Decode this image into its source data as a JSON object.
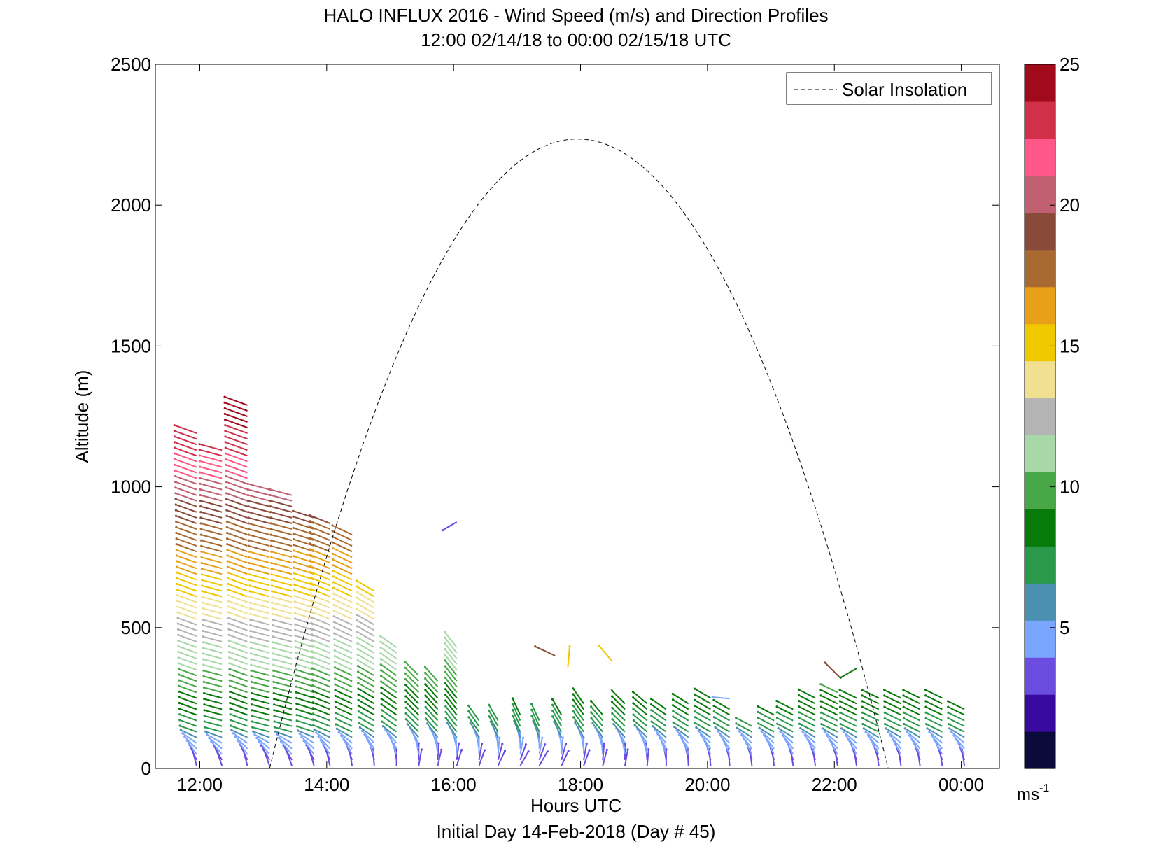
{
  "figure": {
    "title_line1": "HALO INFLUX 2016 - Wind Speed (m/s) and Direction Profiles",
    "title_line2": "12:00 02/14/18 to 00:00 02/15/18  UTC",
    "xlabel": "Hours UTC",
    "subtitle": "Initial Day 14-Feb-2018 (Day # 45)",
    "ylabel": "Altitude (m)",
    "legend_label": "Solar Insolation",
    "colorbar_unit_base": "ms",
    "colorbar_unit_exp": "-1"
  },
  "chart_data": {
    "type": "scatter",
    "description": "wind barb profiles (altitude vs. time), colored by wind speed",
    "x_axis": {
      "label": "Hours UTC",
      "range_hours": [
        11.3,
        24.6
      ],
      "ticks": [
        {
          "value": 12,
          "label": "12:00"
        },
        {
          "value": 14,
          "label": "14:00"
        },
        {
          "value": 16,
          "label": "16:00"
        },
        {
          "value": 18,
          "label": "18:00"
        },
        {
          "value": 20,
          "label": "20:00"
        },
        {
          "value": 22,
          "label": "22:00"
        },
        {
          "value": 24,
          "label": "00:00"
        }
      ]
    },
    "y_axis": {
      "label": "Altitude (m)",
      "range": [
        0,
        2500
      ],
      "ticks": [
        0,
        500,
        1000,
        1500,
        2000,
        2500
      ]
    },
    "colorbar": {
      "range": [
        0,
        25
      ],
      "ticks": [
        5,
        10,
        15,
        20,
        25
      ],
      "colors": [
        "#0a0a3c",
        "#3a0aa0",
        "#6a4ce0",
        "#7aa6ff",
        "#4a90b0",
        "#2a9a4a",
        "#087a0a",
        "#48a848",
        "#a8d8a8",
        "#b4b4b4",
        "#f0e090",
        "#f0c800",
        "#e8a018",
        "#a86a30",
        "#8a4a3a",
        "#c06070",
        "#ff5888",
        "#d03048",
        "#a00a1a"
      ]
    },
    "solar_insolation": {
      "style": "dashed",
      "start_hour": 13.1,
      "peak_hour": 17.95,
      "peak_altitude": 2235,
      "end_hour": 22.85
    },
    "profiles": [
      {
        "time": 11.95,
        "max_alt": 1200,
        "dir": 250
      },
      {
        "time": 12.35,
        "max_alt": 1140,
        "dir": 255
      },
      {
        "time": 12.75,
        "max_alt": 1290,
        "dir": 250
      },
      {
        "time": 13.1,
        "max_alt": 1000,
        "dir": 255
      },
      {
        "time": 13.45,
        "max_alt": 980,
        "dir": 255
      },
      {
        "time": 13.8,
        "max_alt": 900,
        "dir": 252
      },
      {
        "time": 14.05,
        "max_alt": 880,
        "dir": 248
      },
      {
        "time": 14.4,
        "max_alt": 840,
        "dir": 245
      },
      {
        "time": 14.75,
        "max_alt": 630,
        "dir": 240
      },
      {
        "time": 15.1,
        "max_alt": 430,
        "dir": 235
      },
      {
        "time": 15.45,
        "max_alt": 340,
        "dir": 225
      },
      {
        "time": 15.75,
        "max_alt": 320,
        "dir": 222
      },
      {
        "time": 16.05,
        "max_alt": 430,
        "dir": 218
      },
      {
        "time": 16.4,
        "max_alt": 180,
        "dir": 215
      },
      {
        "time": 16.7,
        "max_alt": 180,
        "dir": 210
      },
      {
        "time": 17.05,
        "max_alt": 190,
        "dir": 205
      },
      {
        "time": 17.35,
        "max_alt": 180,
        "dir": 205
      },
      {
        "time": 17.7,
        "max_alt": 200,
        "dir": 210
      },
      {
        "time": 18.05,
        "max_alt": 240,
        "dir": 215
      },
      {
        "time": 18.35,
        "max_alt": 190,
        "dir": 220
      },
      {
        "time": 18.7,
        "max_alt": 230,
        "dir": 225
      },
      {
        "time": 19.05,
        "max_alt": 240,
        "dir": 230
      },
      {
        "time": 19.35,
        "max_alt": 210,
        "dir": 235
      },
      {
        "time": 19.7,
        "max_alt": 240,
        "dir": 238
      },
      {
        "time": 20.05,
        "max_alt": 250,
        "dir": 240
      },
      {
        "time": 20.35,
        "max_alt": 210,
        "dir": 240
      },
      {
        "time": 20.7,
        "max_alt": 150,
        "dir": 242
      },
      {
        "time": 21.05,
        "max_alt": 190,
        "dir": 242
      },
      {
        "time": 21.35,
        "max_alt": 220,
        "dir": 243
      },
      {
        "time": 21.7,
        "max_alt": 250,
        "dir": 243
      },
      {
        "time": 22.05,
        "max_alt": 280,
        "dir": 244
      },
      {
        "time": 22.35,
        "max_alt": 260,
        "dir": 244
      },
      {
        "time": 22.7,
        "max_alt": 260,
        "dir": 244
      },
      {
        "time": 23.05,
        "max_alt": 260,
        "dir": 244
      },
      {
        "time": 23.35,
        "max_alt": 250,
        "dir": 244
      },
      {
        "time": 23.7,
        "max_alt": 250,
        "dir": 244
      },
      {
        "time": 24.05,
        "max_alt": 220,
        "dir": 244
      }
    ],
    "isolated_barbs": [
      {
        "time": 16.05,
        "alt": 875,
        "speed": 3,
        "dir": 300
      },
      {
        "time": 17.6,
        "alt": 400,
        "speed": 19,
        "dir": 245
      },
      {
        "time": 17.8,
        "alt": 360,
        "speed": 15,
        "dir": 175
      },
      {
        "time": 18.5,
        "alt": 380,
        "speed": 15,
        "dir": 220
      },
      {
        "time": 20.35,
        "alt": 248,
        "speed": 5,
        "dir": 265
      },
      {
        "time": 22.1,
        "alt": 320,
        "speed": 19,
        "dir": 225
      },
      {
        "time": 22.35,
        "alt": 355,
        "speed": 8,
        "dir": 300
      }
    ]
  }
}
